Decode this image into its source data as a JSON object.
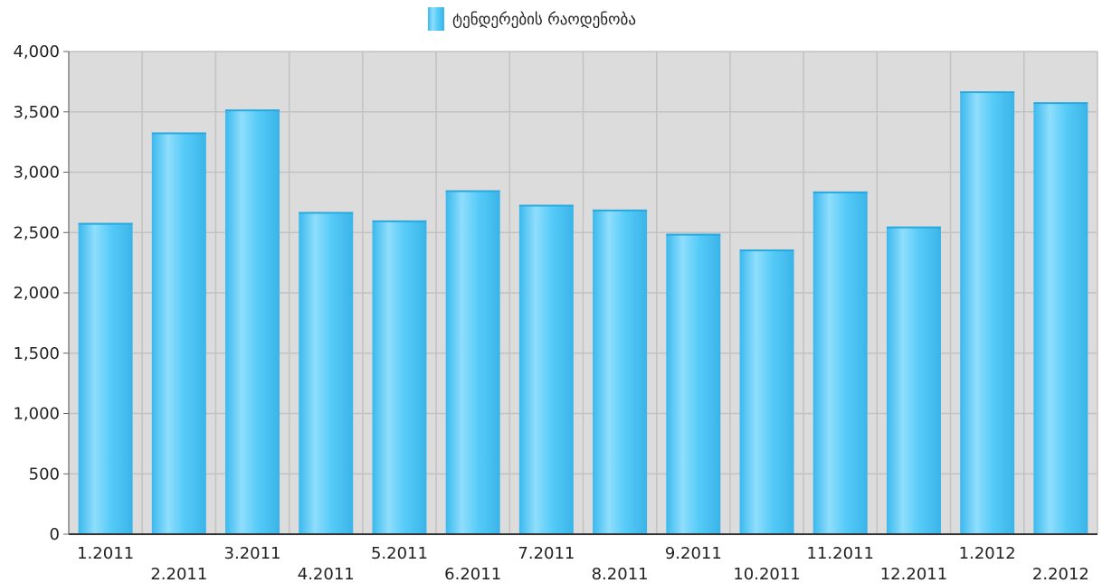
{
  "chart_data": {
    "type": "bar",
    "categories": [
      "1.2011",
      "2.2011",
      "3.2011",
      "4.2011",
      "5.2011",
      "6.2011",
      "7.2011",
      "8.2011",
      "9.2011",
      "10.2011",
      "11.2011",
      "12.2011",
      "1.2012",
      "2.2012"
    ],
    "series": [
      {
        "name": "ტენდერების რაოდენობა",
        "values": [
          2580,
          3330,
          3520,
          2670,
          2600,
          2850,
          2730,
          2690,
          2490,
          2360,
          2840,
          2550,
          3670,
          3580
        ]
      }
    ],
    "ylim": [
      0,
      4000
    ],
    "yticks": [
      "0",
      "500",
      "1,000",
      "1,500",
      "2,000",
      "2,500",
      "3,000",
      "3,500",
      "4,000"
    ],
    "grid": true,
    "legend_position": "top-center",
    "colors": {
      "bar": "#4cc8f7",
      "bar_highlight": "#a6e6fd",
      "plot_background": "#dcdcdc",
      "grid": "#c2c2c2",
      "axis": "#333333"
    }
  }
}
